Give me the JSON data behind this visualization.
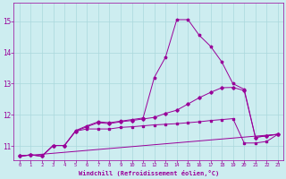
{
  "xlabel": "Windchill (Refroidissement éolien,°C)",
  "xlim": [
    -0.5,
    23.5
  ],
  "ylim": [
    10.55,
    15.6
  ],
  "yticks": [
    11,
    12,
    13,
    14,
    15
  ],
  "xticks": [
    0,
    1,
    2,
    3,
    4,
    5,
    6,
    7,
    8,
    9,
    10,
    11,
    12,
    13,
    14,
    15,
    16,
    17,
    18,
    19,
    20,
    21,
    22,
    23
  ],
  "bg_color": "#cdedf0",
  "grid_color": "#aad8dc",
  "line_color": "#990099",
  "line1_x": [
    0,
    1,
    2,
    3,
    4,
    5,
    6,
    7,
    8,
    9,
    10,
    11,
    12,
    13,
    14,
    15,
    16,
    17,
    18,
    19,
    20,
    21,
    22,
    23
  ],
  "line1_y": [
    10.68,
    10.72,
    10.68,
    11.02,
    11.02,
    11.5,
    11.65,
    11.78,
    11.75,
    11.8,
    11.85,
    11.9,
    13.2,
    13.85,
    15.05,
    15.05,
    14.55,
    14.2,
    13.7,
    13.0,
    12.82,
    11.28,
    11.33,
    11.38
  ],
  "line2_x": [
    0,
    1,
    2,
    3,
    4,
    5,
    6,
    7,
    8,
    9,
    10,
    11,
    12,
    13,
    14,
    15,
    16,
    17,
    18,
    19,
    20,
    21,
    22,
    23
  ],
  "line2_y": [
    10.68,
    10.72,
    10.68,
    11.02,
    11.02,
    11.48,
    11.62,
    11.75,
    11.72,
    11.78,
    11.82,
    11.87,
    11.92,
    12.05,
    12.15,
    12.35,
    12.55,
    12.72,
    12.87,
    12.88,
    12.78,
    11.28,
    11.33,
    11.38
  ],
  "line3_x": [
    0,
    23
  ],
  "line3_y": [
    10.68,
    11.38
  ],
  "line4_x": [
    0,
    1,
    2,
    3,
    4,
    5,
    6,
    7,
    8,
    9,
    10,
    11,
    12,
    13,
    14,
    15,
    16,
    17,
    18,
    19,
    20,
    21,
    22,
    23
  ],
  "line4_y": [
    10.68,
    10.72,
    10.68,
    11.02,
    11.02,
    11.48,
    11.55,
    11.55,
    11.55,
    11.6,
    11.62,
    11.65,
    11.68,
    11.7,
    11.72,
    11.75,
    11.78,
    11.82,
    11.85,
    11.88,
    11.1,
    11.1,
    11.15,
    11.38
  ]
}
